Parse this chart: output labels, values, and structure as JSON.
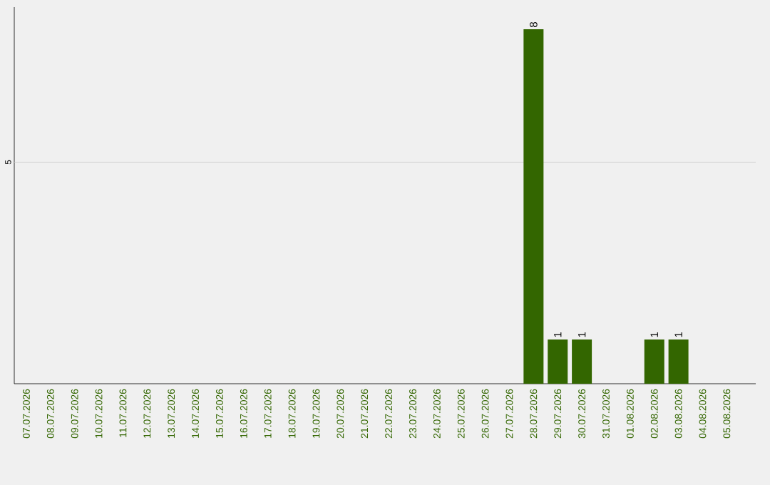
{
  "chart_data": {
    "type": "bar",
    "categories": [
      "07.07.2026",
      "08.07.2026",
      "09.07.2026",
      "10.07.2026",
      "11.07.2026",
      "12.07.2026",
      "13.07.2026",
      "14.07.2026",
      "15.07.2026",
      "16.07.2026",
      "17.07.2026",
      "18.07.2026",
      "19.07.2026",
      "20.07.2026",
      "21.07.2026",
      "22.07.2026",
      "23.07.2026",
      "24.07.2026",
      "25.07.2026",
      "26.07.2026",
      "27.07.2026",
      "28.07.2026",
      "29.07.2026",
      "30.07.2026",
      "31.07.2026",
      "01.08.2026",
      "02.08.2026",
      "03.08.2026",
      "04.08.2026",
      "05.08.2026"
    ],
    "values": [
      null,
      null,
      null,
      null,
      null,
      null,
      null,
      null,
      null,
      null,
      null,
      null,
      null,
      null,
      null,
      null,
      null,
      null,
      null,
      null,
      null,
      8,
      1,
      1,
      null,
      null,
      1,
      1,
      null,
      null
    ],
    "data_labels": true,
    "color": "#336600",
    "ylim": [
      0,
      8.5
    ],
    "ref_lines": [
      {
        "axis": "y",
        "value": 5,
        "label": "5",
        "color": "#cccccc"
      }
    ]
  }
}
